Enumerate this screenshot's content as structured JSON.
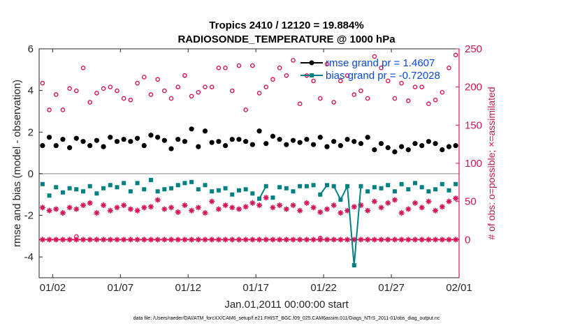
{
  "colors": {
    "rmse": "#000000",
    "bias": "#008080",
    "obs": "#d41558",
    "legend_text": "#0a49d6",
    "zero_line": "#b0b0b0"
  },
  "footer": "data file: /Users/raeder/DAI/ATM_forcXX/CAM6_setup/f.e21.FHIST_BGC.f09_025.CAM6assim.011/Diags_NTrS_2011-01/obs_diag_output.nc",
  "chart_data": {
    "type": "scatter",
    "title": "Tropics 2410 / 12120 = 19.884%",
    "subtitle": "RADIOSONDE_TEMPERATURE @ 1000 hPa",
    "xlabel": "Jan.01,2011 00:00:00 start",
    "ylabel": "rmse and bias (model - observation)",
    "y2label": "# of obs: o=possible; ×=assimilated",
    "xlim": [
      0.5,
      31.5
    ],
    "ylim": [
      -5,
      6
    ],
    "y2lim": [
      -50,
      250
    ],
    "x_ticks": [
      1.5,
      6.5,
      11.5,
      16.5,
      21.5,
      26.5,
      31.5
    ],
    "x_tick_labels": [
      "01/02",
      "01/07",
      "01/12",
      "01/17",
      "01/22",
      "01/27",
      "02/01"
    ],
    "y_ticks": [
      -4,
      -2,
      0,
      2,
      4,
      6
    ],
    "y_tick_labels": [
      "-4",
      "-2",
      "0",
      "2",
      "4",
      "6"
    ],
    "y2_ticks": [
      0,
      50,
      100,
      150,
      200,
      250
    ],
    "y2_tick_labels": [
      "0",
      "50",
      "100",
      "150",
      "200",
      "250"
    ],
    "legend": [
      {
        "label": "rmse grand pr = 1.4607",
        "series": "rmse"
      },
      {
        "label": "bias grand pr = -0.72028",
        "series": "bias"
      }
    ],
    "series": [
      {
        "name": "rmse",
        "x": [
          0.75,
          1.25,
          1.75,
          2.25,
          2.75,
          3.25,
          3.75,
          4.25,
          4.75,
          5.25,
          5.75,
          6.25,
          6.75,
          7.25,
          7.75,
          8.25,
          8.75,
          9.25,
          9.75,
          10.25,
          10.75,
          11.25,
          11.75,
          12.25,
          12.75,
          13.25,
          13.75,
          14.25,
          14.75,
          15.25,
          15.75,
          16.25,
          16.75,
          17.25,
          17.75,
          18.25,
          18.75,
          19.25,
          19.75,
          20.25,
          20.75,
          21.25,
          21.75,
          22.25,
          22.75,
          23.25,
          23.75,
          24.25,
          24.75,
          25.25,
          25.75,
          26.25,
          26.75,
          27.25,
          27.75,
          28.25,
          28.75,
          29.25,
          29.75,
          30.25,
          30.75,
          31.25
        ],
        "values": [
          1.35,
          1.75,
          1.35,
          1.65,
          1.25,
          1.7,
          1.55,
          1.35,
          1.6,
          1.3,
          1.75,
          1.55,
          1.65,
          1.55,
          1.7,
          1.35,
          1.85,
          1.75,
          1.6,
          1.2,
          1.65,
          1.55,
          2.15,
          1.3,
          2.05,
          1.5,
          1.55,
          1.35,
          1.65,
          1.65,
          1.55,
          1.4,
          2.05,
          1.45,
          1.8,
          1.65,
          1.4,
          1.6,
          1.5,
          1.65,
          1.4,
          1.75,
          1.3,
          1.55,
          1.35,
          1.65,
          1.55,
          1.45,
          1.75,
          1.15,
          1.45,
          1.25,
          1.05,
          1.3,
          1.15,
          1.45,
          1.35,
          1.55,
          1.45,
          1.15,
          1.3,
          1.35
        ]
      },
      {
        "name": "bias",
        "x": [
          0.75,
          1.25,
          1.75,
          2.25,
          2.75,
          3.25,
          3.75,
          4.25,
          4.75,
          5.25,
          5.75,
          6.25,
          6.75,
          7.25,
          7.75,
          8.25,
          8.75,
          9.25,
          9.75,
          10.25,
          10.75,
          11.25,
          11.75,
          12.25,
          12.75,
          13.25,
          13.75,
          14.25,
          14.75,
          15.25,
          15.75,
          16.25,
          16.75,
          17.25,
          17.75,
          18.25,
          18.75,
          19.25,
          19.75,
          20.25,
          20.75,
          21.25,
          21.75,
          22.25,
          22.75,
          23.25,
          23.75,
          24.25,
          24.75,
          25.25,
          25.75,
          26.25,
          26.75,
          27.25,
          27.75,
          28.25,
          28.75,
          29.25,
          29.75,
          30.25,
          30.75,
          31.25
        ],
        "values": [
          -0.5,
          -1.05,
          -0.65,
          -0.9,
          -0.7,
          -0.75,
          -0.85,
          -0.6,
          -0.95,
          -0.7,
          -0.55,
          -0.65,
          -0.45,
          -0.85,
          -0.45,
          -0.75,
          -0.3,
          -0.85,
          -0.75,
          -0.7,
          -0.55,
          -0.45,
          -0.4,
          -0.75,
          -0.55,
          -0.85,
          -0.8,
          -0.7,
          -1.0,
          -0.8,
          -0.75,
          -0.95,
          -1.2,
          -0.6,
          -1.15,
          -0.65,
          -0.7,
          -0.85,
          -0.6,
          -0.6,
          -0.55,
          -1.0,
          -0.55,
          -0.6,
          -1.25,
          -0.6,
          -4.4,
          -0.6,
          -0.85,
          -0.65,
          -0.7,
          -0.55,
          -0.85,
          -0.5,
          -0.75,
          -0.45,
          -0.65,
          -0.85,
          -0.75,
          -0.5,
          -0.8,
          -0.5
        ]
      },
      {
        "name": "obs_possible",
        "axis": "right",
        "x": [
          0.75,
          1.25,
          1.75,
          2.25,
          2.75,
          3.25,
          3.75,
          4.25,
          4.75,
          5.25,
          5.75,
          6.25,
          6.75,
          7.25,
          7.75,
          8.25,
          8.75,
          9.25,
          9.75,
          10.25,
          10.75,
          11.25,
          11.75,
          12.25,
          12.75,
          13.25,
          13.75,
          14.25,
          14.75,
          15.25,
          15.75,
          16.25,
          16.75,
          17.25,
          17.75,
          18.25,
          18.75,
          19.25,
          19.75,
          20.25,
          20.75,
          21.25,
          21.75,
          22.25,
          22.75,
          23.25,
          23.75,
          24.25,
          24.75,
          25.25,
          25.75,
          26.25,
          26.75,
          27.25,
          27.75,
          28.25,
          28.75,
          29.25,
          29.75,
          30.25,
          30.75,
          31.25
        ],
        "values": [
          205,
          170,
          190,
          170,
          198,
          195,
          225,
          180,
          192,
          198,
          200,
          195,
          185,
          183,
          205,
          213,
          190,
          210,
          195,
          185,
          200,
          215,
          188,
          193,
          200,
          200,
          225,
          225,
          195,
          228,
          170,
          228,
          192,
          200,
          210,
          225,
          215,
          235,
          178,
          215,
          208,
          185,
          230,
          180,
          208,
          215,
          190,
          195,
          185,
          240,
          225,
          208,
          185,
          205,
          182,
          200,
          200,
          178,
          183,
          193,
          225,
          242
        ]
      },
      {
        "name": "obs_possible_low",
        "axis": "right",
        "x": [
          3.25,
          21.25
        ],
        "values": [
          4,
          2
        ]
      },
      {
        "name": "obs_assimilated",
        "axis": "right",
        "x": [
          0.75,
          1.25,
          1.75,
          2.25,
          2.75,
          3.25,
          3.75,
          4.25,
          4.75,
          5.25,
          5.75,
          6.25,
          6.75,
          7.25,
          7.75,
          8.25,
          8.75,
          9.25,
          9.75,
          10.25,
          10.75,
          11.25,
          11.75,
          12.25,
          12.75,
          13.25,
          13.75,
          14.25,
          14.75,
          15.25,
          15.75,
          16.25,
          16.75,
          17.25,
          17.75,
          18.25,
          18.75,
          19.25,
          19.75,
          20.25,
          20.75,
          21.25,
          21.75,
          22.25,
          22.75,
          23.25,
          23.75,
          24.25,
          24.75,
          25.25,
          25.75,
          26.25,
          26.75,
          27.25,
          27.75,
          28.25,
          28.75,
          29.25,
          29.75,
          30.25,
          30.75,
          31.25
        ],
        "values": [
          42,
          38,
          40,
          35,
          42,
          40,
          45,
          48,
          35,
          45,
          38,
          42,
          45,
          40,
          38,
          42,
          43,
          52,
          40,
          42,
          36,
          45,
          38,
          42,
          35,
          50,
          40,
          45,
          42,
          40,
          43,
          48,
          45,
          55,
          42,
          45,
          40,
          45,
          38,
          48,
          42,
          36,
          40,
          45,
          35,
          38,
          43,
          45,
          38,
          50,
          42,
          48,
          52,
          35,
          40,
          48,
          42,
          50,
          38,
          43,
          50,
          54
        ]
      },
      {
        "name": "obs_assimilated_zero",
        "axis": "right",
        "x": [
          0.75,
          1.25,
          1.75,
          2.25,
          2.75,
          3.25,
          3.75,
          4.25,
          4.75,
          5.25,
          5.75,
          6.25,
          6.75,
          7.25,
          7.75,
          8.25,
          8.75,
          9.25,
          9.75,
          10.25,
          10.75,
          11.25,
          11.75,
          12.25,
          12.75,
          13.25,
          13.75,
          14.25,
          14.75,
          15.25,
          15.75,
          16.25,
          16.75,
          17.25,
          17.75,
          18.25,
          18.75,
          19.25,
          19.75,
          20.25,
          20.75,
          21.25,
          21.75,
          22.25,
          22.75,
          23.25,
          23.75,
          24.25,
          24.75,
          25.25,
          25.75,
          26.25,
          26.75,
          27.25,
          27.75,
          28.25,
          28.75,
          29.25,
          29.75,
          30.25,
          30.75,
          31.25
        ],
        "values": [
          0,
          0,
          0,
          0,
          0,
          0,
          0,
          0,
          0,
          0,
          0,
          0,
          0,
          0,
          0,
          0,
          0,
          0,
          0,
          0,
          0,
          0,
          0,
          0,
          0,
          0,
          0,
          0,
          0,
          0,
          0,
          0,
          0,
          0,
          0,
          0,
          0,
          0,
          0,
          0,
          0,
          0,
          0,
          0,
          0,
          0,
          0,
          0,
          0,
          0,
          0,
          0,
          0,
          0,
          0,
          0,
          0,
          0,
          0,
          0,
          0,
          0
        ]
      }
    ]
  }
}
